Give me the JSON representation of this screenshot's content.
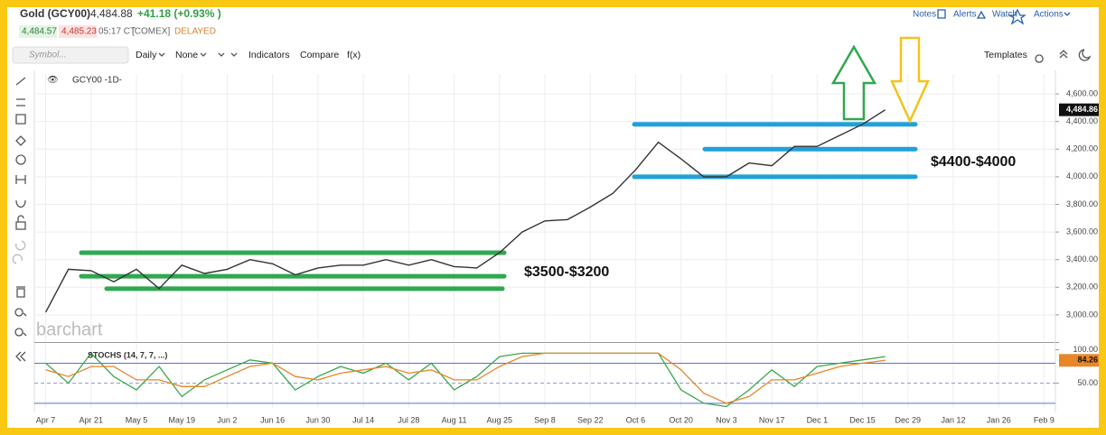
{
  "header": {
    "name": "Gold (GCY00)",
    "last": "4,484.88",
    "change": "+41.18 (+0.93% )",
    "bid": "4,484.57",
    "ask": "4,485.23",
    "time": "05:17 CT",
    "exchange": "[COMEX]",
    "status": "DELAYED",
    "actions": [
      "Notes",
      "Alerts",
      "Watch",
      "Actions"
    ]
  },
  "toolbar": {
    "search": "Symbol...",
    "items": [
      "Daily",
      "None",
      "Indicators",
      "Compare",
      "f(x)"
    ],
    "templates": "Templates"
  },
  "chart_data": [
    {
      "type": "line",
      "legend": "GCY00 -1D-",
      "watermark": "barchart",
      "categories": [
        "Apr 7",
        null,
        "Apr 21",
        null,
        "May 5",
        null,
        "May 19",
        null,
        "Jun 2",
        null,
        "Jun 16",
        null,
        "Jun 30",
        null,
        "Jul 14",
        null,
        "Jul 28",
        null,
        "Aug 11",
        null,
        "Aug 25",
        null,
        "Sep 8",
        null,
        "Sep 22",
        null,
        "Oct 6",
        null,
        "Oct 20",
        null,
        "Nov 3",
        null,
        "Nov 17",
        null,
        "Dec 1",
        null,
        "Dec 15",
        null,
        "Dec 29",
        null,
        "Jan 12",
        null,
        "Jan 26",
        null,
        "Feb 9"
      ],
      "series": [
        {
          "color": "#333333",
          "values": [
            3020,
            3330,
            3320,
            3240,
            3330,
            3190,
            3360,
            3300,
            3330,
            3400,
            3370,
            3290,
            3340,
            3360,
            3360,
            3400,
            3360,
            3400,
            3350,
            3340,
            3450,
            3600,
            3680,
            3690,
            3780,
            3880,
            4050,
            4250,
            4130,
            4000,
            4000,
            4100,
            4080,
            4220,
            4220,
            4300,
            4380,
            4484.86,
            null,
            null,
            null,
            null,
            null,
            null,
            null
          ]
        }
      ],
      "last_label": "4,484.86",
      "ylim": [
        2810,
        4744
      ],
      "yticks": [
        {
          "value": 3000,
          "label": "3,000.00"
        },
        {
          "value": 3200,
          "label": "3,200.00"
        },
        {
          "value": 3400,
          "label": "3,400.00"
        },
        {
          "value": 3600,
          "label": "3,600.00"
        },
        {
          "value": 3800,
          "label": "3,800.00"
        },
        {
          "value": 4000,
          "label": "4,000.00"
        },
        {
          "value": 4200,
          "label": "4,200.00"
        },
        {
          "value": 4400,
          "label": "4,400.00"
        },
        {
          "value": 4600,
          "label": "4,600.00"
        }
      ],
      "grid": true,
      "levels": [
        {
          "value": 3450,
          "color": "#2fa84f"
        },
        {
          "value": 3280,
          "color": "#2fa84f"
        },
        {
          "value": 3190,
          "color": "#2fa84f"
        },
        {
          "value": 4380,
          "color": "#22a0d8"
        },
        {
          "value": 4200,
          "color": "#22a0d8"
        },
        {
          "value": 4000,
          "color": "#22a0d8"
        }
      ],
      "annotations": [
        "$3500-$3200",
        "$4400-$4000"
      ]
    },
    {
      "type": "line",
      "title": "STOCHS (14, 7, 7, ...)",
      "series": [
        {
          "color": "#3aa84a",
          "values": [
            80,
            50,
            95,
            60,
            40,
            75,
            30,
            55,
            70,
            85,
            80,
            40,
            60,
            75,
            65,
            80,
            55,
            80,
            40,
            60,
            90,
            95,
            95,
            95,
            95,
            95,
            95,
            95,
            40,
            20,
            15,
            40,
            70,
            45,
            75,
            80,
            85,
            90,
            null,
            null,
            null,
            null,
            null,
            null,
            null
          ]
        },
        {
          "color": "#e8862a",
          "values": [
            70,
            60,
            75,
            75,
            55,
            55,
            45,
            45,
            60,
            75,
            80,
            60,
            55,
            65,
            70,
            75,
            65,
            70,
            55,
            55,
            75,
            90,
            95,
            95,
            95,
            95,
            95,
            95,
            70,
            35,
            20,
            30,
            55,
            55,
            65,
            75,
            80,
            84.26,
            null,
            null,
            null,
            null,
            null,
            null,
            null
          ]
        }
      ],
      "last_label": "84.26",
      "ylim": [
        13,
        109
      ],
      "yticks": [
        {
          "value": 100,
          "label": "100.00"
        },
        {
          "value": 50,
          "label": "50.00"
        }
      ],
      "bands": [
        80,
        20
      ]
    }
  ]
}
